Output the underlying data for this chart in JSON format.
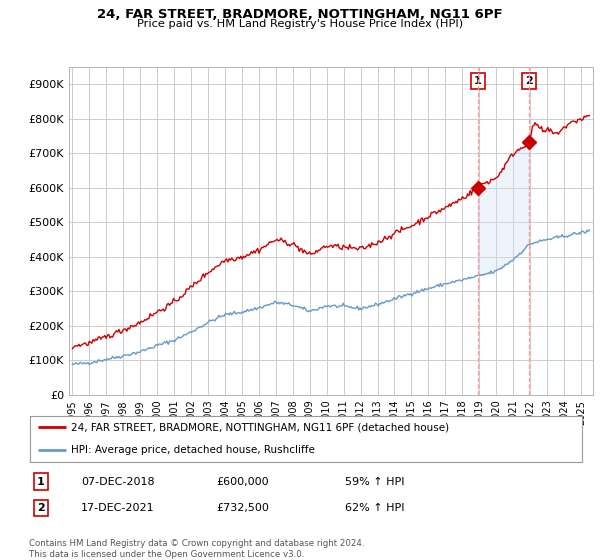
{
  "title": "24, FAR STREET, BRADMORE, NOTTINGHAM, NG11 6PF",
  "subtitle": "Price paid vs. HM Land Registry's House Price Index (HPI)",
  "ylim": [
    0,
    950000
  ],
  "yticks": [
    0,
    100000,
    200000,
    300000,
    400000,
    500000,
    600000,
    700000,
    800000,
    900000
  ],
  "ytick_labels": [
    "£0",
    "£100K",
    "£200K",
    "£300K",
    "£400K",
    "£500K",
    "£600K",
    "£700K",
    "£800K",
    "£900K"
  ],
  "xlim_start": 1994.8,
  "xlim_end": 2025.7,
  "xtick_years": [
    1995,
    1996,
    1997,
    1998,
    1999,
    2000,
    2001,
    2002,
    2003,
    2004,
    2005,
    2006,
    2007,
    2008,
    2009,
    2010,
    2011,
    2012,
    2013,
    2014,
    2015,
    2016,
    2017,
    2018,
    2019,
    2020,
    2021,
    2022,
    2023,
    2024,
    2025
  ],
  "red_line_color": "#cc0000",
  "blue_line_color": "#6699cc",
  "fill_color": "#cce0f5",
  "point1_x": 2018.92,
  "point1_y": 600000,
  "point1_label": "1",
  "point1_date": "07-DEC-2018",
  "point1_price": "£600,000",
  "point1_hpi": "59% ↑ HPI",
  "point2_x": 2021.96,
  "point2_y": 732500,
  "point2_label": "2",
  "point2_date": "17-DEC-2021",
  "point2_price": "£732,500",
  "point2_hpi": "62% ↑ HPI",
  "legend_line1": "24, FAR STREET, BRADMORE, NOTTINGHAM, NG11 6PF (detached house)",
  "legend_line2": "HPI: Average price, detached house, Rushcliffe",
  "footer": "Contains HM Land Registry data © Crown copyright and database right 2024.\nThis data is licensed under the Open Government Licence v3.0.",
  "background_color": "#ffffff",
  "grid_color": "#cccccc"
}
